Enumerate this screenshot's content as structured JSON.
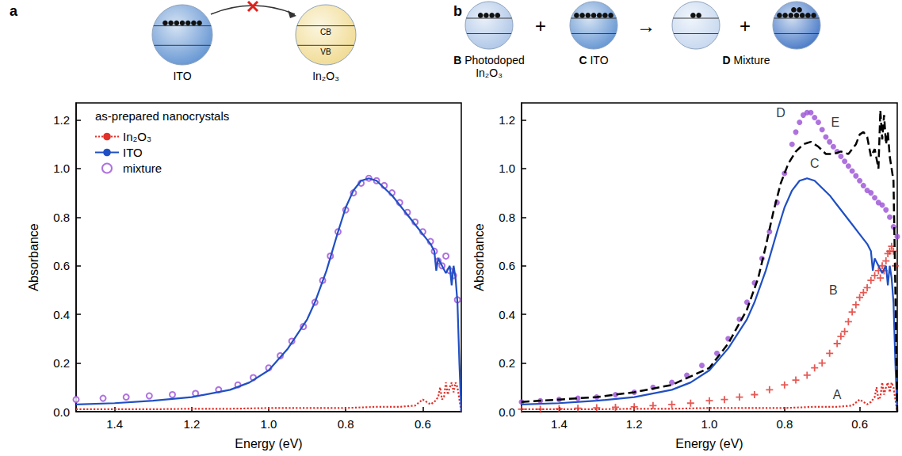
{
  "chart_data": [
    {
      "panel": "a",
      "type": "line",
      "diagram": {
        "sequence": [
          {
            "label": "ITO",
            "dots": [
              7
            ],
            "color": "#5b8fd0"
          },
          {
            "label": "In₂O₃",
            "dots": [],
            "color": "#f0d98c",
            "bands": [
              "CB",
              "VB"
            ]
          }
        ]
      },
      "x_label": "Energy (eV)",
      "y_label": "Absorbance",
      "xlim": [
        1.5,
        0.5
      ],
      "xticks": [
        1.4,
        1.2,
        {
          "value": 1,
          "label": "1.0"
        },
        0.8,
        0.6
      ],
      "ylim": [
        0,
        1.27
      ],
      "yticks": [
        {
          "value": 0,
          "label": "0.0"
        },
        0.2,
        0.4,
        0.6,
        0.8,
        {
          "value": 1,
          "label": "1.0"
        },
        1.2
      ],
      "grid": false,
      "legend": "upper left",
      "legend_title": "as-prepared nanocrystals",
      "series": [
        {
          "name": "In₂O₃",
          "type": "line",
          "line_style": "dotted",
          "color": "#e0312a",
          "x": [
            1.5,
            1.4,
            1.3,
            1.2,
            1.1,
            1.0,
            0.9,
            0.8,
            0.72,
            0.66,
            0.62,
            0.6,
            0.59,
            0.58,
            0.57,
            0.56,
            0.555,
            0.55,
            0.545,
            0.54,
            0.535,
            0.53,
            0.525,
            0.52,
            0.515,
            0.51,
            0.505,
            0.5
          ],
          "values": [
            0.01,
            0.01,
            0.01,
            0.012,
            0.012,
            0.015,
            0.015,
            0.015,
            0.02,
            0.02,
            0.025,
            0.05,
            0.04,
            0.03,
            0.04,
            0.06,
            0.1,
            0.05,
            0.06,
            0.12,
            0.07,
            0.1,
            0.12,
            0.08,
            0.12,
            0.1,
            0.05,
            0.0
          ]
        },
        {
          "name": "ITO",
          "type": "line",
          "line_style": "solid",
          "color": "#1f4fc4",
          "x": [
            1.5,
            1.4,
            1.3,
            1.2,
            1.1,
            1.05,
            1.0,
            0.95,
            0.9,
            0.88,
            0.85,
            0.82,
            0.8,
            0.78,
            0.76,
            0.74,
            0.72,
            0.7,
            0.68,
            0.66,
            0.64,
            0.62,
            0.6,
            0.58,
            0.57,
            0.565,
            0.56,
            0.55,
            0.54,
            0.53,
            0.525,
            0.52,
            0.515,
            0.51,
            0.505,
            0.5
          ],
          "values": [
            0.03,
            0.035,
            0.045,
            0.06,
            0.09,
            0.12,
            0.17,
            0.26,
            0.38,
            0.45,
            0.58,
            0.74,
            0.84,
            0.91,
            0.95,
            0.96,
            0.95,
            0.92,
            0.89,
            0.85,
            0.81,
            0.77,
            0.73,
            0.69,
            0.66,
            0.58,
            0.63,
            0.6,
            0.57,
            0.6,
            0.52,
            0.6,
            0.55,
            0.45,
            0.2,
            0.0
          ]
        },
        {
          "name": "mixture",
          "type": "scatter",
          "marker": "open_circle",
          "color": "#9a4fd6",
          "x": [
            1.5,
            1.43,
            1.37,
            1.31,
            1.25,
            1.19,
            1.13,
            1.08,
            1.04,
            1.0,
            0.97,
            0.94,
            0.91,
            0.88,
            0.86,
            0.84,
            0.82,
            0.8,
            0.78,
            0.76,
            0.74,
            0.72,
            0.7,
            0.68,
            0.66,
            0.64,
            0.62,
            0.6,
            0.58,
            0.57,
            0.56,
            0.55,
            0.54,
            0.53,
            0.52,
            0.51
          ],
          "values": [
            0.05,
            0.055,
            0.06,
            0.065,
            0.07,
            0.075,
            0.09,
            0.11,
            0.14,
            0.18,
            0.23,
            0.29,
            0.35,
            0.45,
            0.54,
            0.64,
            0.74,
            0.83,
            0.9,
            0.94,
            0.96,
            0.95,
            0.93,
            0.9,
            0.86,
            0.82,
            0.78,
            0.74,
            0.7,
            0.66,
            0.62,
            0.6,
            0.64,
            0.58,
            0.56,
            0.46
          ]
        }
      ]
    },
    {
      "panel": "b",
      "type": "line",
      "diagram": {
        "sequence": [
          {
            "letter": "B",
            "label": "Photodoped In₂O₃",
            "dots": [
              4
            ],
            "color": "#a9c3e6"
          },
          {
            "op": "+"
          },
          {
            "letter": "C",
            "label": "ITO",
            "dots": [
              7
            ],
            "color": "#5b8fd0"
          },
          {
            "op": "→"
          },
          {
            "dots": [
              2
            ],
            "color": "#c3d5ee"
          },
          {
            "op": "+"
          },
          {
            "dots": [
              7,
              2
            ],
            "color": "#3d72c4"
          }
        ],
        "group_label": {
          "letter": "D",
          "label": "Mixture"
        }
      },
      "x_label": "Energy (eV)",
      "y_label": "Absorbance",
      "xlim": [
        1.5,
        0.5
      ],
      "xticks": [
        1.4,
        1.2,
        {
          "value": 1,
          "label": "1.0"
        },
        0.8,
        0.6
      ],
      "ylim": [
        0,
        1.27
      ],
      "yticks": [
        {
          "value": 0,
          "label": "0.0"
        },
        0.2,
        0.4,
        0.6,
        0.8,
        {
          "value": 1,
          "label": "1.0"
        },
        1.2
      ],
      "grid": false,
      "series": [
        {
          "name": "A",
          "label_at": [
            0.66,
            0.07
          ],
          "type": "line",
          "line_style": "dotted",
          "color": "#e0312a",
          "x": [
            1.5,
            1.4,
            1.3,
            1.2,
            1.1,
            1.0,
            0.9,
            0.8,
            0.72,
            0.66,
            0.62,
            0.6,
            0.59,
            0.58,
            0.57,
            0.56,
            0.555,
            0.55,
            0.545,
            0.54,
            0.535,
            0.53,
            0.525,
            0.52,
            0.515,
            0.51,
            0.505,
            0.5
          ],
          "values": [
            0.01,
            0.01,
            0.01,
            0.012,
            0.012,
            0.015,
            0.015,
            0.015,
            0.02,
            0.02,
            0.025,
            0.05,
            0.04,
            0.03,
            0.04,
            0.06,
            0.1,
            0.05,
            0.06,
            0.12,
            0.07,
            0.1,
            0.12,
            0.08,
            0.12,
            0.1,
            0.05,
            0.0
          ]
        },
        {
          "name": "B",
          "label_at": [
            0.67,
            0.5
          ],
          "type": "scatter",
          "marker": "plus",
          "color": "#e0312a",
          "x": [
            1.5,
            1.45,
            1.4,
            1.35,
            1.3,
            1.25,
            1.2,
            1.15,
            1.1,
            1.05,
            1.0,
            0.96,
            0.92,
            0.88,
            0.84,
            0.8,
            0.77,
            0.74,
            0.72,
            0.7,
            0.68,
            0.66,
            0.65,
            0.64,
            0.63,
            0.62,
            0.61,
            0.6,
            0.59,
            0.58,
            0.57,
            0.56,
            0.55,
            0.545,
            0.54,
            0.535,
            0.53,
            0.525,
            0.52,
            0.515,
            0.51,
            0.505
          ],
          "values": [
            0.01,
            0.01,
            0.012,
            0.014,
            0.016,
            0.018,
            0.02,
            0.025,
            0.03,
            0.035,
            0.045,
            0.05,
            0.06,
            0.07,
            0.09,
            0.11,
            0.13,
            0.15,
            0.18,
            0.2,
            0.24,
            0.28,
            0.31,
            0.33,
            0.37,
            0.41,
            0.44,
            0.47,
            0.49,
            0.51,
            0.54,
            0.56,
            0.58,
            0.55,
            0.6,
            0.58,
            0.62,
            0.65,
            0.66,
            0.68,
            0.66,
            0.6
          ]
        },
        {
          "name": "C",
          "label_at": [
            0.72,
            1.02
          ],
          "type": "line",
          "line_style": "solid",
          "color": "#1f4fc4",
          "x": [
            1.5,
            1.4,
            1.3,
            1.2,
            1.1,
            1.05,
            1.0,
            0.95,
            0.9,
            0.88,
            0.85,
            0.82,
            0.8,
            0.78,
            0.76,
            0.74,
            0.72,
            0.7,
            0.68,
            0.66,
            0.64,
            0.62,
            0.6,
            0.58,
            0.57,
            0.565,
            0.56,
            0.55,
            0.54,
            0.53,
            0.525,
            0.52,
            0.515,
            0.51,
            0.505,
            0.5
          ],
          "values": [
            0.03,
            0.035,
            0.045,
            0.06,
            0.09,
            0.12,
            0.17,
            0.26,
            0.38,
            0.45,
            0.58,
            0.74,
            0.84,
            0.91,
            0.95,
            0.96,
            0.95,
            0.92,
            0.89,
            0.85,
            0.81,
            0.77,
            0.73,
            0.69,
            0.66,
            0.58,
            0.63,
            0.6,
            0.57,
            0.6,
            0.52,
            0.6,
            0.55,
            0.45,
            0.2,
            0.0
          ]
        },
        {
          "name": "D",
          "label_at": [
            0.81,
            1.23
          ],
          "type": "scatter",
          "marker": "circle",
          "color": "#9a4fd6",
          "x": [
            1.5,
            1.45,
            1.4,
            1.35,
            1.3,
            1.25,
            1.2,
            1.15,
            1.1,
            1.06,
            1.02,
            0.98,
            0.95,
            0.92,
            0.9,
            0.88,
            0.86,
            0.84,
            0.82,
            0.8,
            0.78,
            0.77,
            0.76,
            0.75,
            0.74,
            0.73,
            0.72,
            0.71,
            0.7,
            0.69,
            0.68,
            0.67,
            0.66,
            0.65,
            0.64,
            0.63,
            0.62,
            0.61,
            0.6,
            0.59,
            0.58,
            0.57,
            0.56,
            0.55,
            0.54,
            0.53,
            0.52,
            0.51,
            0.5
          ],
          "values": [
            0.04,
            0.045,
            0.05,
            0.055,
            0.06,
            0.07,
            0.08,
            0.1,
            0.12,
            0.15,
            0.19,
            0.24,
            0.3,
            0.38,
            0.45,
            0.53,
            0.63,
            0.74,
            0.86,
            0.98,
            1.1,
            1.15,
            1.19,
            1.22,
            1.23,
            1.23,
            1.21,
            1.19,
            1.16,
            1.13,
            1.11,
            1.09,
            1.07,
            1.05,
            1.03,
            1.01,
            0.99,
            0.97,
            0.95,
            0.93,
            0.91,
            0.9,
            0.88,
            0.86,
            0.85,
            0.83,
            0.8,
            0.76,
            0.72
          ]
        },
        {
          "name": "E",
          "label_at": [
            0.665,
            1.19
          ],
          "type": "line",
          "line_style": "dashed",
          "color": "#000000",
          "x": [
            1.5,
            1.4,
            1.3,
            1.2,
            1.1,
            1.0,
            0.95,
            0.9,
            0.87,
            0.85,
            0.83,
            0.81,
            0.79,
            0.77,
            0.75,
            0.73,
            0.71,
            0.69,
            0.67,
            0.65,
            0.63,
            0.61,
            0.6,
            0.59,
            0.58,
            0.57,
            0.56,
            0.55,
            0.545,
            0.54,
            0.535,
            0.53,
            0.525,
            0.52,
            0.51,
            0.505,
            0.5
          ],
          "values": [
            0.04,
            0.05,
            0.06,
            0.08,
            0.11,
            0.18,
            0.28,
            0.42,
            0.55,
            0.68,
            0.82,
            0.94,
            1.02,
            1.07,
            1.1,
            1.11,
            1.09,
            1.06,
            1.06,
            1.07,
            1.06,
            1.1,
            1.14,
            1.15,
            1.13,
            1.05,
            1.08,
            1.0,
            1.24,
            1.12,
            1.22,
            1.1,
            1.15,
            1.05,
            0.95,
            0.5,
            0.0
          ]
        }
      ]
    }
  ]
}
